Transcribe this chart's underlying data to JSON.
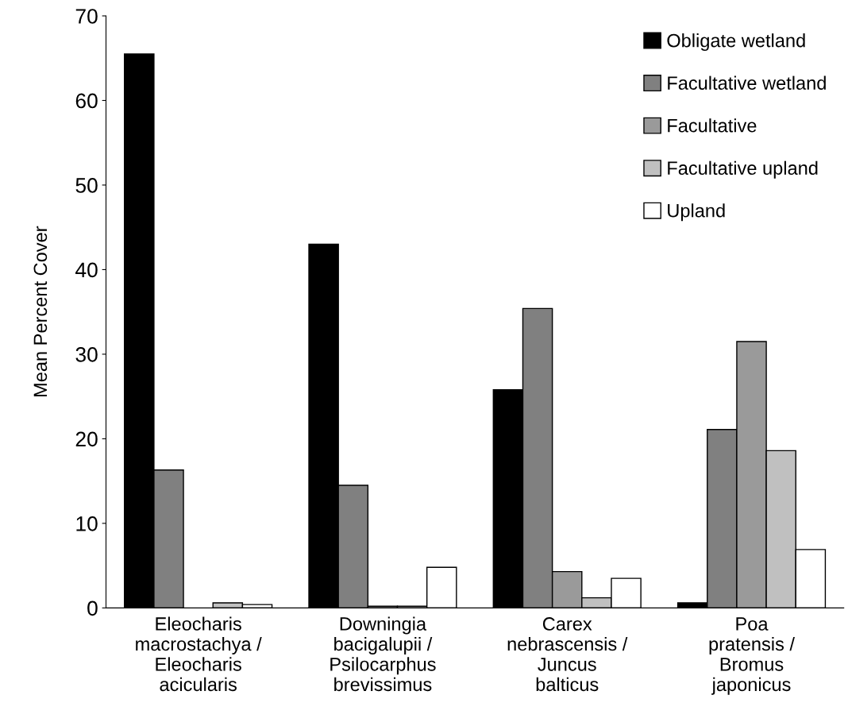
{
  "chart_data": {
    "type": "bar",
    "ylabel": "Mean Percent Cover",
    "categories": [
      "Eleocharis\nmacrostachya /\nEleocharis\nacicularis",
      "Downingia\nbacigalupii /\nPsilocarphus\nbrevissimus",
      "Carex\nnebrascensis /\nJuncus\nbalticus",
      "Poa\npratensis /\nBromus\njaponicus"
    ],
    "series": [
      {
        "name": "Obligate wetland",
        "color": "#000000",
        "values": [
          65.5,
          43.0,
          25.8,
          0.6
        ]
      },
      {
        "name": "Facultative wetland",
        "color": "#808080",
        "values": [
          16.3,
          14.5,
          35.4,
          21.1
        ]
      },
      {
        "name": "Facultative",
        "color": "#9a9a9a",
        "values": [
          null,
          0.2,
          4.3,
          31.5
        ]
      },
      {
        "name": "Facultative upland",
        "color": "#c0c0c0",
        "values": [
          0.6,
          0.2,
          1.2,
          18.6
        ]
      },
      {
        "name": "Upland",
        "color": "#ffffff",
        "values": [
          0.4,
          4.8,
          3.5,
          6.9
        ]
      }
    ],
    "ylim": [
      0,
      70
    ],
    "yticks": [
      0,
      10,
      20,
      30,
      40,
      50,
      60,
      70
    ],
    "grid": false,
    "legend": "top right"
  }
}
